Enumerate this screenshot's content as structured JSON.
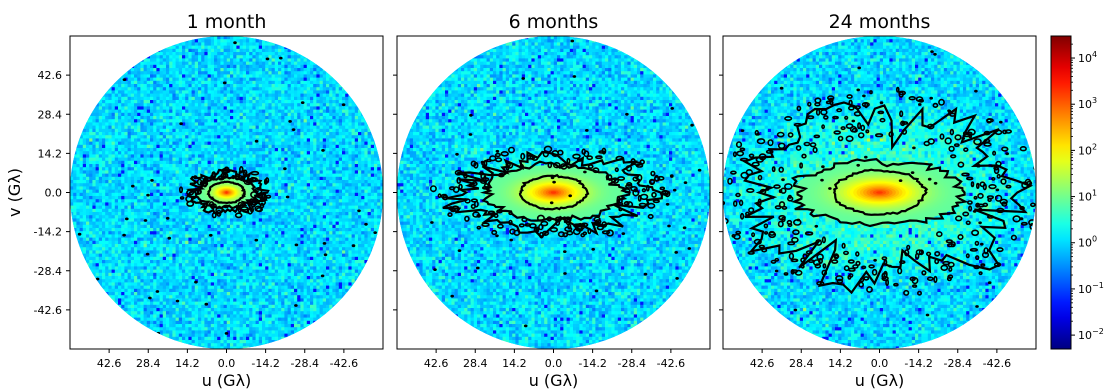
{
  "chart_data": [
    {
      "type": "heatmap",
      "title": "1 month",
      "xlabel": "u (Gλ)",
      "ylabel": "v (Gλ)",
      "xticks": [
        42.6,
        28.4,
        14.2,
        0.0,
        -14.2,
        -28.4,
        -42.6
      ],
      "xtick_labels": [
        "42.6",
        "28.4",
        "14.2",
        "0.0",
        "-14.2",
        "-28.4",
        "-42.6"
      ],
      "yticks": [
        42.6,
        28.4,
        14.2,
        0.0,
        -14.2,
        -28.4,
        -42.6
      ],
      "ytick_labels": [
        "42.6",
        "28.4",
        "14.2",
        "0.0",
        "-14.2",
        "-28.4",
        "-42.6"
      ],
      "xlim": [
        56.8,
        -56.8
      ],
      "ylim": [
        -56.8,
        56.8
      ],
      "uv_coverage_radius": 56.8,
      "background_level": 1,
      "peak_level": 3000,
      "contour_extent": [
        {
          "level": 1,
          "half_width": 13,
          "half_height": 7
        },
        {
          "level": 2,
          "half_width": 10.5,
          "half_height": 5.5
        },
        {
          "level": 3,
          "half_width": 6.5,
          "half_height": 3.8
        }
      ]
    },
    {
      "type": "heatmap",
      "title": "6 months",
      "xlabel": "u (Gλ)",
      "xticks": [
        42.6,
        28.4,
        14.2,
        0.0,
        -14.2,
        -28.4,
        -42.6
      ],
      "xtick_labels": [
        "42.6",
        "28.4",
        "14.2",
        "0.0",
        "-14.2",
        "-28.4",
        "-42.6"
      ],
      "xlim": [
        56.8,
        -56.8
      ],
      "ylim": [
        -56.8,
        56.8
      ],
      "uv_coverage_radius": 56.8,
      "background_level": 1,
      "peak_level": 3000,
      "contour_extent": [
        {
          "level": 1,
          "half_width": 34,
          "half_height": 13
        },
        {
          "level": 2,
          "half_width": 25,
          "half_height": 10
        },
        {
          "level": 3,
          "half_width": 12,
          "half_height": 6
        }
      ]
    },
    {
      "type": "heatmap",
      "title": "24 months",
      "xlabel": "u (Gλ)",
      "xticks": [
        42.6,
        28.4,
        14.2,
        0.0,
        -14.2,
        -28.4,
        -42.6
      ],
      "xtick_labels": [
        "42.6",
        "28.4",
        "14.2",
        "0.0",
        "-14.2",
        "-28.4",
        "-42.6"
      ],
      "xlim": [
        56.8,
        -56.8
      ],
      "ylim": [
        -56.8,
        56.8
      ],
      "uv_coverage_radius": 56.8,
      "background_level": 1,
      "peak_level": 3000,
      "contour_extent": [
        {
          "level": 1,
          "half_width": 46,
          "half_height": 29
        },
        {
          "level": 2,
          "half_width": 31,
          "half_height": 11.5
        },
        {
          "level": 3,
          "half_width": 16.5,
          "half_height": 8
        }
      ]
    }
  ],
  "colorbar": {
    "colormap": "jet",
    "scale": "log",
    "range": [
      0.005,
      30000
    ],
    "ticks": [
      {
        "value": 10000,
        "base": "10",
        "exp": "4"
      },
      {
        "value": 1000,
        "base": "10",
        "exp": "3"
      },
      {
        "value": 100,
        "base": "10",
        "exp": "2"
      },
      {
        "value": 10,
        "base": "10",
        "exp": "1"
      },
      {
        "value": 1,
        "base": "10",
        "exp": "0"
      },
      {
        "value": 0.1,
        "base": "10",
        "exp": "−1"
      },
      {
        "value": 0.01,
        "base": "10",
        "exp": "−2"
      }
    ]
  },
  "colors": {
    "background_cyan": "#33c6f2",
    "contour": "#000000"
  }
}
